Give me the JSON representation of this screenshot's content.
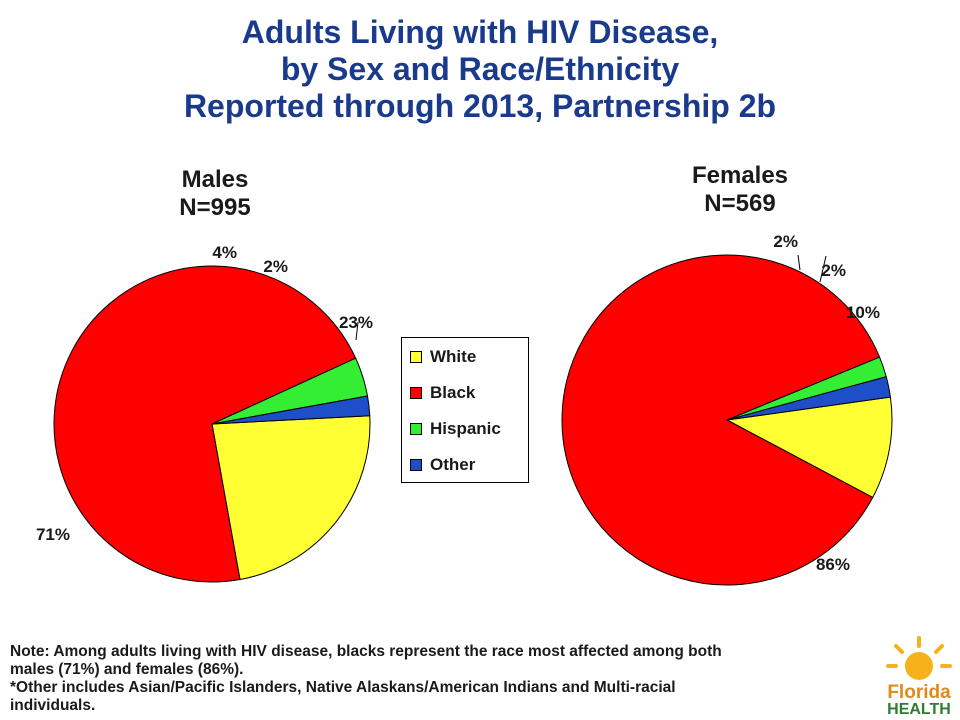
{
  "title": {
    "line1": "Adults Living with HIV Disease,",
    "line2": "by Sex and Race/Ethnicity",
    "line3": "Reported through 2013, Partnership 2b"
  },
  "males": {
    "label": "Males",
    "n": "N=995"
  },
  "females": {
    "label": "Females",
    "n": "N=569"
  },
  "legend": [
    "White",
    "Black",
    "Hispanic",
    "Other"
  ],
  "colors": {
    "White": "#ffff33",
    "Black": "#ff0000",
    "Hispanic": "#33ee33",
    "Other": "#1f4fc8",
    "title": "#1a3a8c"
  },
  "chart_data": [
    {
      "type": "pie",
      "title": "Males N=995",
      "categories": [
        "White",
        "Black",
        "Hispanic",
        "Other"
      ],
      "values": [
        23,
        71,
        4,
        2
      ],
      "labels": [
        "23%",
        "71%",
        "4%",
        "2%"
      ]
    },
    {
      "type": "pie",
      "title": "Females N=569",
      "categories": [
        "White",
        "Black",
        "Hispanic",
        "Other"
      ],
      "values": [
        10,
        86,
        2,
        2
      ],
      "labels": [
        "10%",
        "86%",
        "2%",
        "2%"
      ]
    }
  ],
  "note": {
    "line1": "Note:  Among adults living with HIV disease, blacks represent the race most affected among both",
    "line2": "males (71%) and females (86%).",
    "line3": "*Other includes Asian/Pacific Islanders, Native Alaskans/American Indians and Multi-racial",
    "line4": "individuals."
  },
  "logo": {
    "line1": "Florida",
    "line2": "HEALTH"
  }
}
